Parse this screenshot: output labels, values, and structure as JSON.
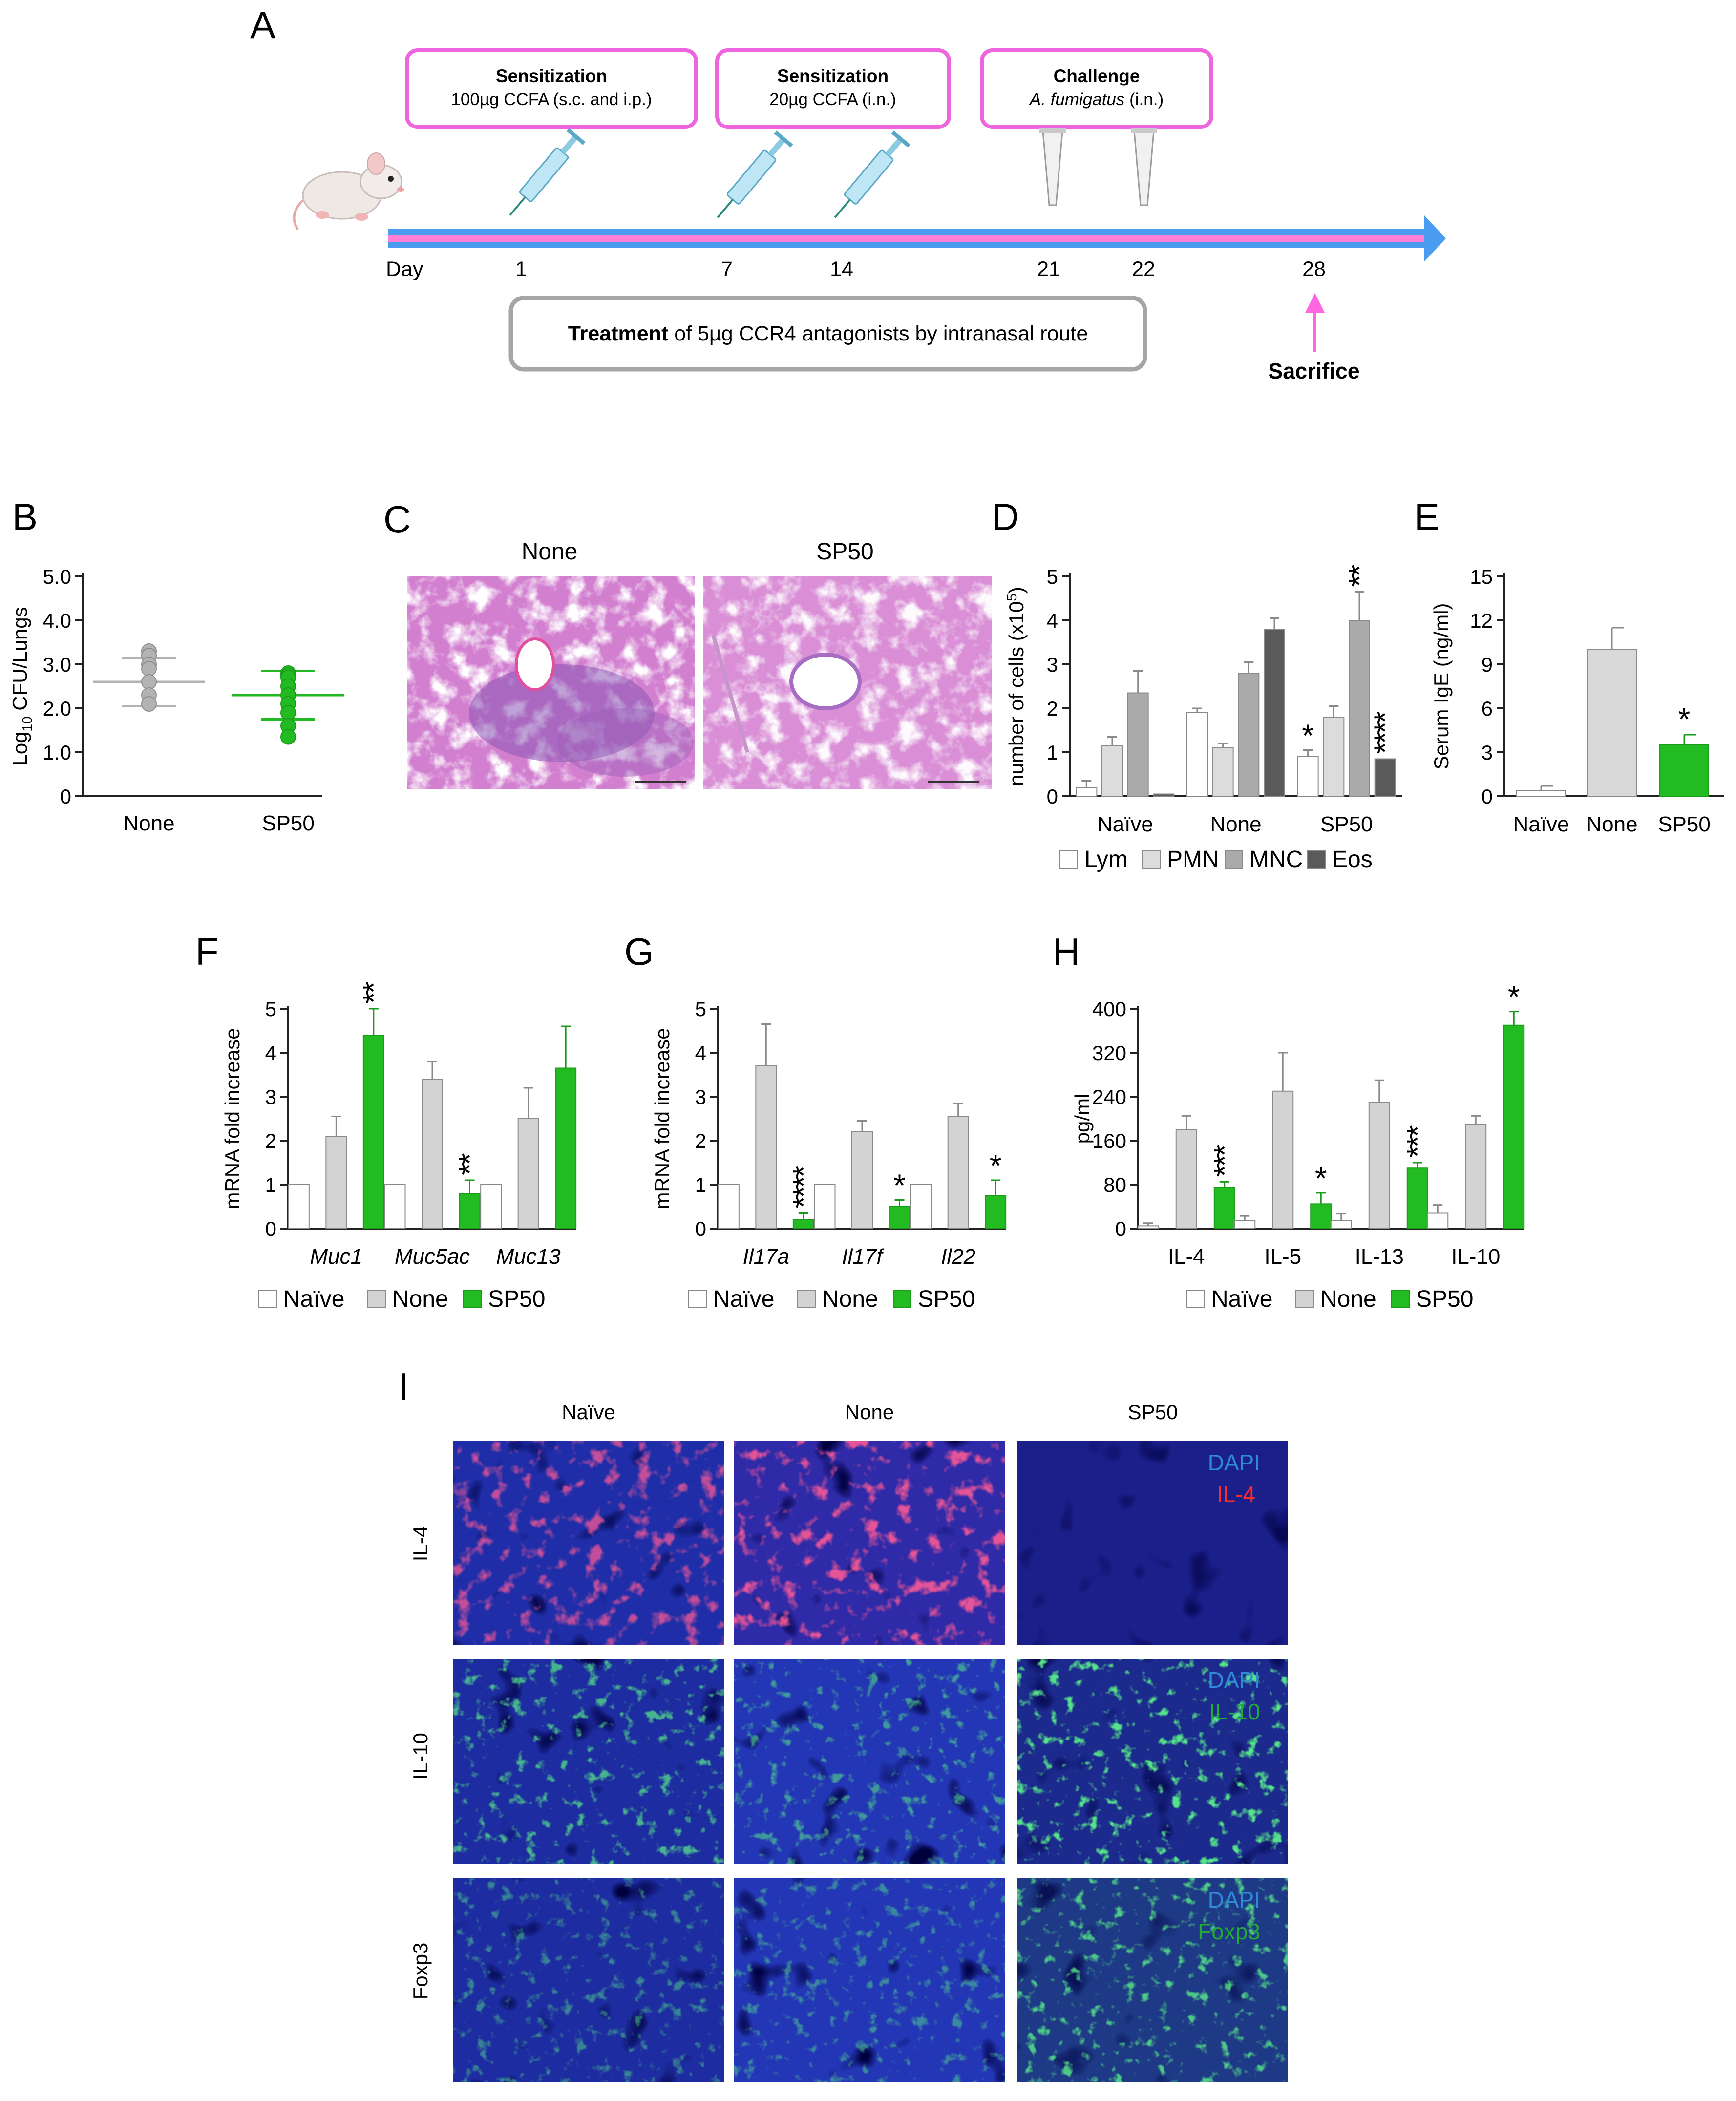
{
  "panel_letters": {
    "A": "A",
    "B": "B",
    "C": "C",
    "D": "D",
    "E": "E",
    "F": "F",
    "G": "G",
    "H": "H",
    "I": "I"
  },
  "timeline": {
    "boxes": [
      {
        "title": "Sensitization",
        "line": "100µg CCFA (s.c. and i.p.)"
      },
      {
        "title": "Sensitization",
        "line": "20µg CCFA (i.n.)"
      },
      {
        "title": "Challenge",
        "line_italic": "A. fumigatus",
        "line_rest": " (i.n.)"
      }
    ],
    "day_label": "Day",
    "days": [
      "1",
      "7",
      "14",
      "21",
      "22",
      "28"
    ],
    "treatment_bold": "Treatment",
    "treatment_rest": " of 5µg CCR4 antagonists by intranasal route",
    "sacrifice": "Sacrifice",
    "colors": {
      "box_border": "#ee66dd",
      "arrow": "#4a9cf0",
      "arrow_inner": "#ff7fd8",
      "treat_border": "#a6a6a6"
    }
  },
  "histology_C": {
    "labels": [
      "None",
      "SP50"
    ]
  },
  "immuno_I": {
    "columns": [
      "Naïve",
      "None",
      "SP50"
    ],
    "rows": [
      "IL-4",
      "IL-10",
      "Foxp3"
    ],
    "overlays": [
      {
        "a": "DAPI",
        "b": "IL-4"
      },
      {
        "a": "DAPI",
        "b": "IL-10"
      },
      {
        "a": "DAPI",
        "b": "Foxp3"
      }
    ]
  },
  "chart_data": [
    {
      "panel": "B",
      "type": "scatter",
      "ylabel_pre": "Log",
      "ylabel_sub": "10",
      "ylabel_post": " CFU/Lungs",
      "yticks": [
        "0",
        "1.0",
        "2.0",
        "3.0",
        "4.0",
        "5.0"
      ],
      "ylim": [
        0,
        5
      ],
      "categories": [
        "None",
        "SP50"
      ],
      "points": [
        [
          3.3,
          3.2,
          3.0,
          2.9,
          2.6,
          2.3,
          2.1
        ],
        [
          2.8,
          2.75,
          2.7,
          2.5,
          2.3,
          2.1,
          1.9,
          1.6,
          1.35
        ]
      ],
      "mean": [
        2.6,
        2.3
      ],
      "sd_hi": [
        3.15,
        2.85
      ],
      "sd_lo": [
        2.05,
        1.75
      ],
      "colors": [
        "#b3b3b3",
        "#22bb22"
      ]
    },
    {
      "panel": "D",
      "type": "bar",
      "ylabel_pre": "number of cells (x10",
      "ylabel_sup": "5",
      "ylabel_post": ")",
      "yticks": [
        "0",
        "1",
        "2",
        "3",
        "4",
        "5"
      ],
      "ylim": [
        0,
        5
      ],
      "categories": [
        "Naïve",
        "None",
        "SP50"
      ],
      "series": [
        {
          "name": "Lym",
          "values": [
            0.2,
            1.9,
            0.9
          ],
          "err": [
            0.15,
            0.1,
            0.15
          ],
          "color": "#ffffff"
        },
        {
          "name": "PMN",
          "values": [
            1.15,
            1.1,
            1.8
          ],
          "err": [
            0.2,
            0.1,
            0.25
          ],
          "color": "#dcdcdc"
        },
        {
          "name": "MNC",
          "values": [
            2.35,
            2.8,
            4.0
          ],
          "err": [
            0.5,
            0.25,
            0.65
          ],
          "color": "#aaaaaa"
        },
        {
          "name": "Eos",
          "values": [
            0.05,
            3.8,
            0.85
          ],
          "err": [
            0.0,
            0.25,
            0.0
          ],
          "color": "#5a5a5a"
        }
      ],
      "stars": [
        {
          "g": 2,
          "s": 0,
          "t": "*"
        },
        {
          "g": 2,
          "s": 2,
          "t": "**"
        },
        {
          "g": 2,
          "s": 3,
          "t": "****"
        }
      ]
    },
    {
      "panel": "E",
      "type": "bar",
      "ylabel": "Serum IgE (ng/ml)",
      "yticks": [
        "0",
        "3",
        "6",
        "9",
        "12",
        "15"
      ],
      "ylim": [
        0,
        15
      ],
      "categories": [
        "Naïve",
        "None",
        "SP50"
      ],
      "values": [
        0.4,
        10.0,
        3.5
      ],
      "err": [
        0.3,
        1.5,
        0.7
      ],
      "colors": [
        "#ffffff",
        "#d9d9d9",
        "#22bb22"
      ],
      "stars": [
        {
          "g": 2,
          "t": "*"
        }
      ]
    },
    {
      "panel": "F",
      "type": "bar",
      "ylabel": "mRNA fold increase",
      "yticks": [
        "0",
        "1",
        "2",
        "3",
        "4",
        "5"
      ],
      "ylim": [
        0,
        5
      ],
      "categories": [
        "Muc1",
        "Muc5ac",
        "Muc13"
      ],
      "italic_categories": true,
      "series": [
        {
          "name": "Naïve",
          "values": [
            1,
            1,
            1
          ],
          "err": [
            0,
            0,
            0
          ],
          "color": "#ffffff"
        },
        {
          "name": "None",
          "values": [
            2.1,
            3.4,
            2.5
          ],
          "err": [
            0.45,
            0.4,
            0.7
          ],
          "color": "#d3d3d3"
        },
        {
          "name": "SP50",
          "values": [
            4.4,
            0.8,
            3.65
          ],
          "err": [
            0.6,
            0.3,
            0.95
          ],
          "color": "#22bb22"
        }
      ],
      "stars": [
        {
          "g": 0,
          "s": 2,
          "t": "**"
        },
        {
          "g": 1,
          "s": 2,
          "t": "**"
        }
      ]
    },
    {
      "panel": "G",
      "type": "bar",
      "ylabel": "mRNA fold increase",
      "yticks": [
        "0",
        "1",
        "2",
        "3",
        "4",
        "5"
      ],
      "ylim": [
        0,
        5
      ],
      "categories": [
        "Il17a",
        "Il17f",
        "Il22"
      ],
      "italic_categories": true,
      "series": [
        {
          "name": "Naïve",
          "values": [
            1,
            1,
            1
          ],
          "err": [
            0,
            0,
            0
          ],
          "color": "#ffffff"
        },
        {
          "name": "None",
          "values": [
            3.7,
            2.2,
            2.55
          ],
          "err": [
            0.95,
            0.25,
            0.3
          ],
          "color": "#d3d3d3"
        },
        {
          "name": "SP50",
          "values": [
            0.2,
            0.5,
            0.75
          ],
          "err": [
            0.15,
            0.15,
            0.35
          ],
          "color": "#22bb22"
        }
      ],
      "stars": [
        {
          "g": 0,
          "s": 2,
          "t": "****"
        },
        {
          "g": 1,
          "s": 2,
          "t": "*"
        },
        {
          "g": 2,
          "s": 2,
          "t": "*"
        }
      ]
    },
    {
      "panel": "H",
      "type": "bar",
      "ylabel": "pg/ml",
      "yticks": [
        "0",
        "80",
        "160",
        "240",
        "320",
        "400"
      ],
      "ylim": [
        0,
        400
      ],
      "categories": [
        "IL-4",
        "IL-5",
        "IL-13",
        "IL-10"
      ],
      "series": [
        {
          "name": "Naïve",
          "values": [
            5,
            15,
            15,
            28
          ],
          "err": [
            5,
            8,
            12,
            15
          ],
          "color": "#ffffff"
        },
        {
          "name": "None",
          "values": [
            180,
            250,
            230,
            190
          ],
          "err": [
            25,
            70,
            40,
            15
          ],
          "color": "#d3d3d3"
        },
        {
          "name": "SP50",
          "values": [
            75,
            45,
            110,
            370
          ],
          "err": [
            10,
            20,
            10,
            25
          ],
          "color": "#22bb22"
        }
      ],
      "stars": [
        {
          "g": 0,
          "s": 2,
          "t": "***"
        },
        {
          "g": 1,
          "s": 2,
          "t": "*"
        },
        {
          "g": 2,
          "s": 2,
          "t": "***"
        },
        {
          "g": 3,
          "s": 2,
          "t": "*"
        }
      ]
    }
  ]
}
